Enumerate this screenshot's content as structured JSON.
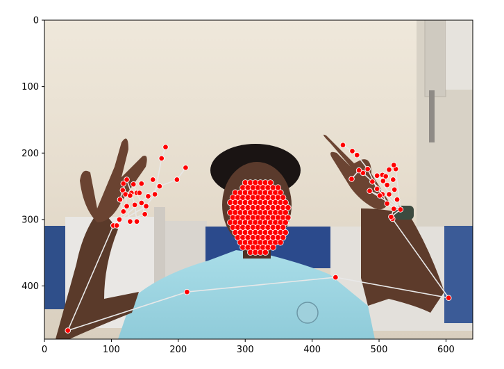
{
  "chart_data": {
    "type": "scatter",
    "title": "",
    "xlabel": "",
    "ylabel": "",
    "xlim": [
      0,
      640
    ],
    "ylim": [
      480,
      0
    ],
    "x_ticks": [
      0,
      100,
      200,
      300,
      400,
      500,
      600
    ],
    "y_ticks": [
      0,
      100,
      200,
      300,
      400
    ],
    "grid": false,
    "point_color": "#ff0000",
    "point_edge_color": "#ffffff",
    "line_color": "#e8e8e8",
    "pose_keypoints": [
      {
        "x": 35,
        "y": 467
      },
      {
        "x": 213,
        "y": 409
      },
      {
        "x": 435,
        "y": 387
      },
      {
        "x": 604,
        "y": 418
      },
      {
        "x": 520,
        "y": 299
      },
      {
        "x": 103,
        "y": 309
      }
    ],
    "left_hand_keypoints": [
      {
        "x": 103,
        "y": 309
      },
      {
        "x": 112,
        "y": 300
      },
      {
        "x": 118,
        "y": 288
      },
      {
        "x": 113,
        "y": 270
      },
      {
        "x": 117,
        "y": 256
      },
      {
        "x": 128,
        "y": 303
      },
      {
        "x": 123,
        "y": 280
      },
      {
        "x": 121,
        "y": 262
      },
      {
        "x": 118,
        "y": 246
      },
      {
        "x": 138,
        "y": 303
      },
      {
        "x": 135,
        "y": 278
      },
      {
        "x": 130,
        "y": 260
      },
      {
        "x": 123,
        "y": 240
      },
      {
        "x": 150,
        "y": 292
      },
      {
        "x": 145,
        "y": 275
      },
      {
        "x": 138,
        "y": 260
      },
      {
        "x": 133,
        "y": 247
      },
      {
        "x": 152,
        "y": 280
      },
      {
        "x": 165,
        "y": 262
      },
      {
        "x": 175,
        "y": 208
      },
      {
        "x": 181,
        "y": 191
      },
      {
        "x": 155,
        "y": 265
      },
      {
        "x": 172,
        "y": 250
      },
      {
        "x": 198,
        "y": 240
      },
      {
        "x": 211,
        "y": 222
      },
      {
        "x": 162,
        "y": 240
      },
      {
        "x": 108,
        "y": 309
      },
      {
        "x": 142,
        "y": 260
      },
      {
        "x": 128,
        "y": 264
      },
      {
        "x": 145,
        "y": 246
      }
    ],
    "right_hand_keypoints": [
      {
        "x": 532,
        "y": 285
      },
      {
        "x": 522,
        "y": 284
      },
      {
        "x": 512,
        "y": 276
      },
      {
        "x": 505,
        "y": 262
      },
      {
        "x": 497,
        "y": 254
      },
      {
        "x": 483,
        "y": 224
      },
      {
        "x": 467,
        "y": 203
      },
      {
        "x": 460,
        "y": 197
      },
      {
        "x": 446,
        "y": 188
      },
      {
        "x": 497,
        "y": 234
      },
      {
        "x": 506,
        "y": 242
      },
      {
        "x": 512,
        "y": 248
      },
      {
        "x": 521,
        "y": 240
      },
      {
        "x": 525,
        "y": 224
      },
      {
        "x": 522,
        "y": 218
      },
      {
        "x": 515,
        "y": 225
      },
      {
        "x": 505,
        "y": 233
      },
      {
        "x": 490,
        "y": 243
      },
      {
        "x": 476,
        "y": 230
      },
      {
        "x": 470,
        "y": 226
      },
      {
        "x": 459,
        "y": 239
      },
      {
        "x": 486,
        "y": 257
      },
      {
        "x": 501,
        "y": 264
      },
      {
        "x": 515,
        "y": 262
      },
      {
        "x": 523,
        "y": 255
      },
      {
        "x": 510,
        "y": 235
      },
      {
        "x": 527,
        "y": 270
      },
      {
        "x": 518,
        "y": 296
      }
    ]
  }
}
